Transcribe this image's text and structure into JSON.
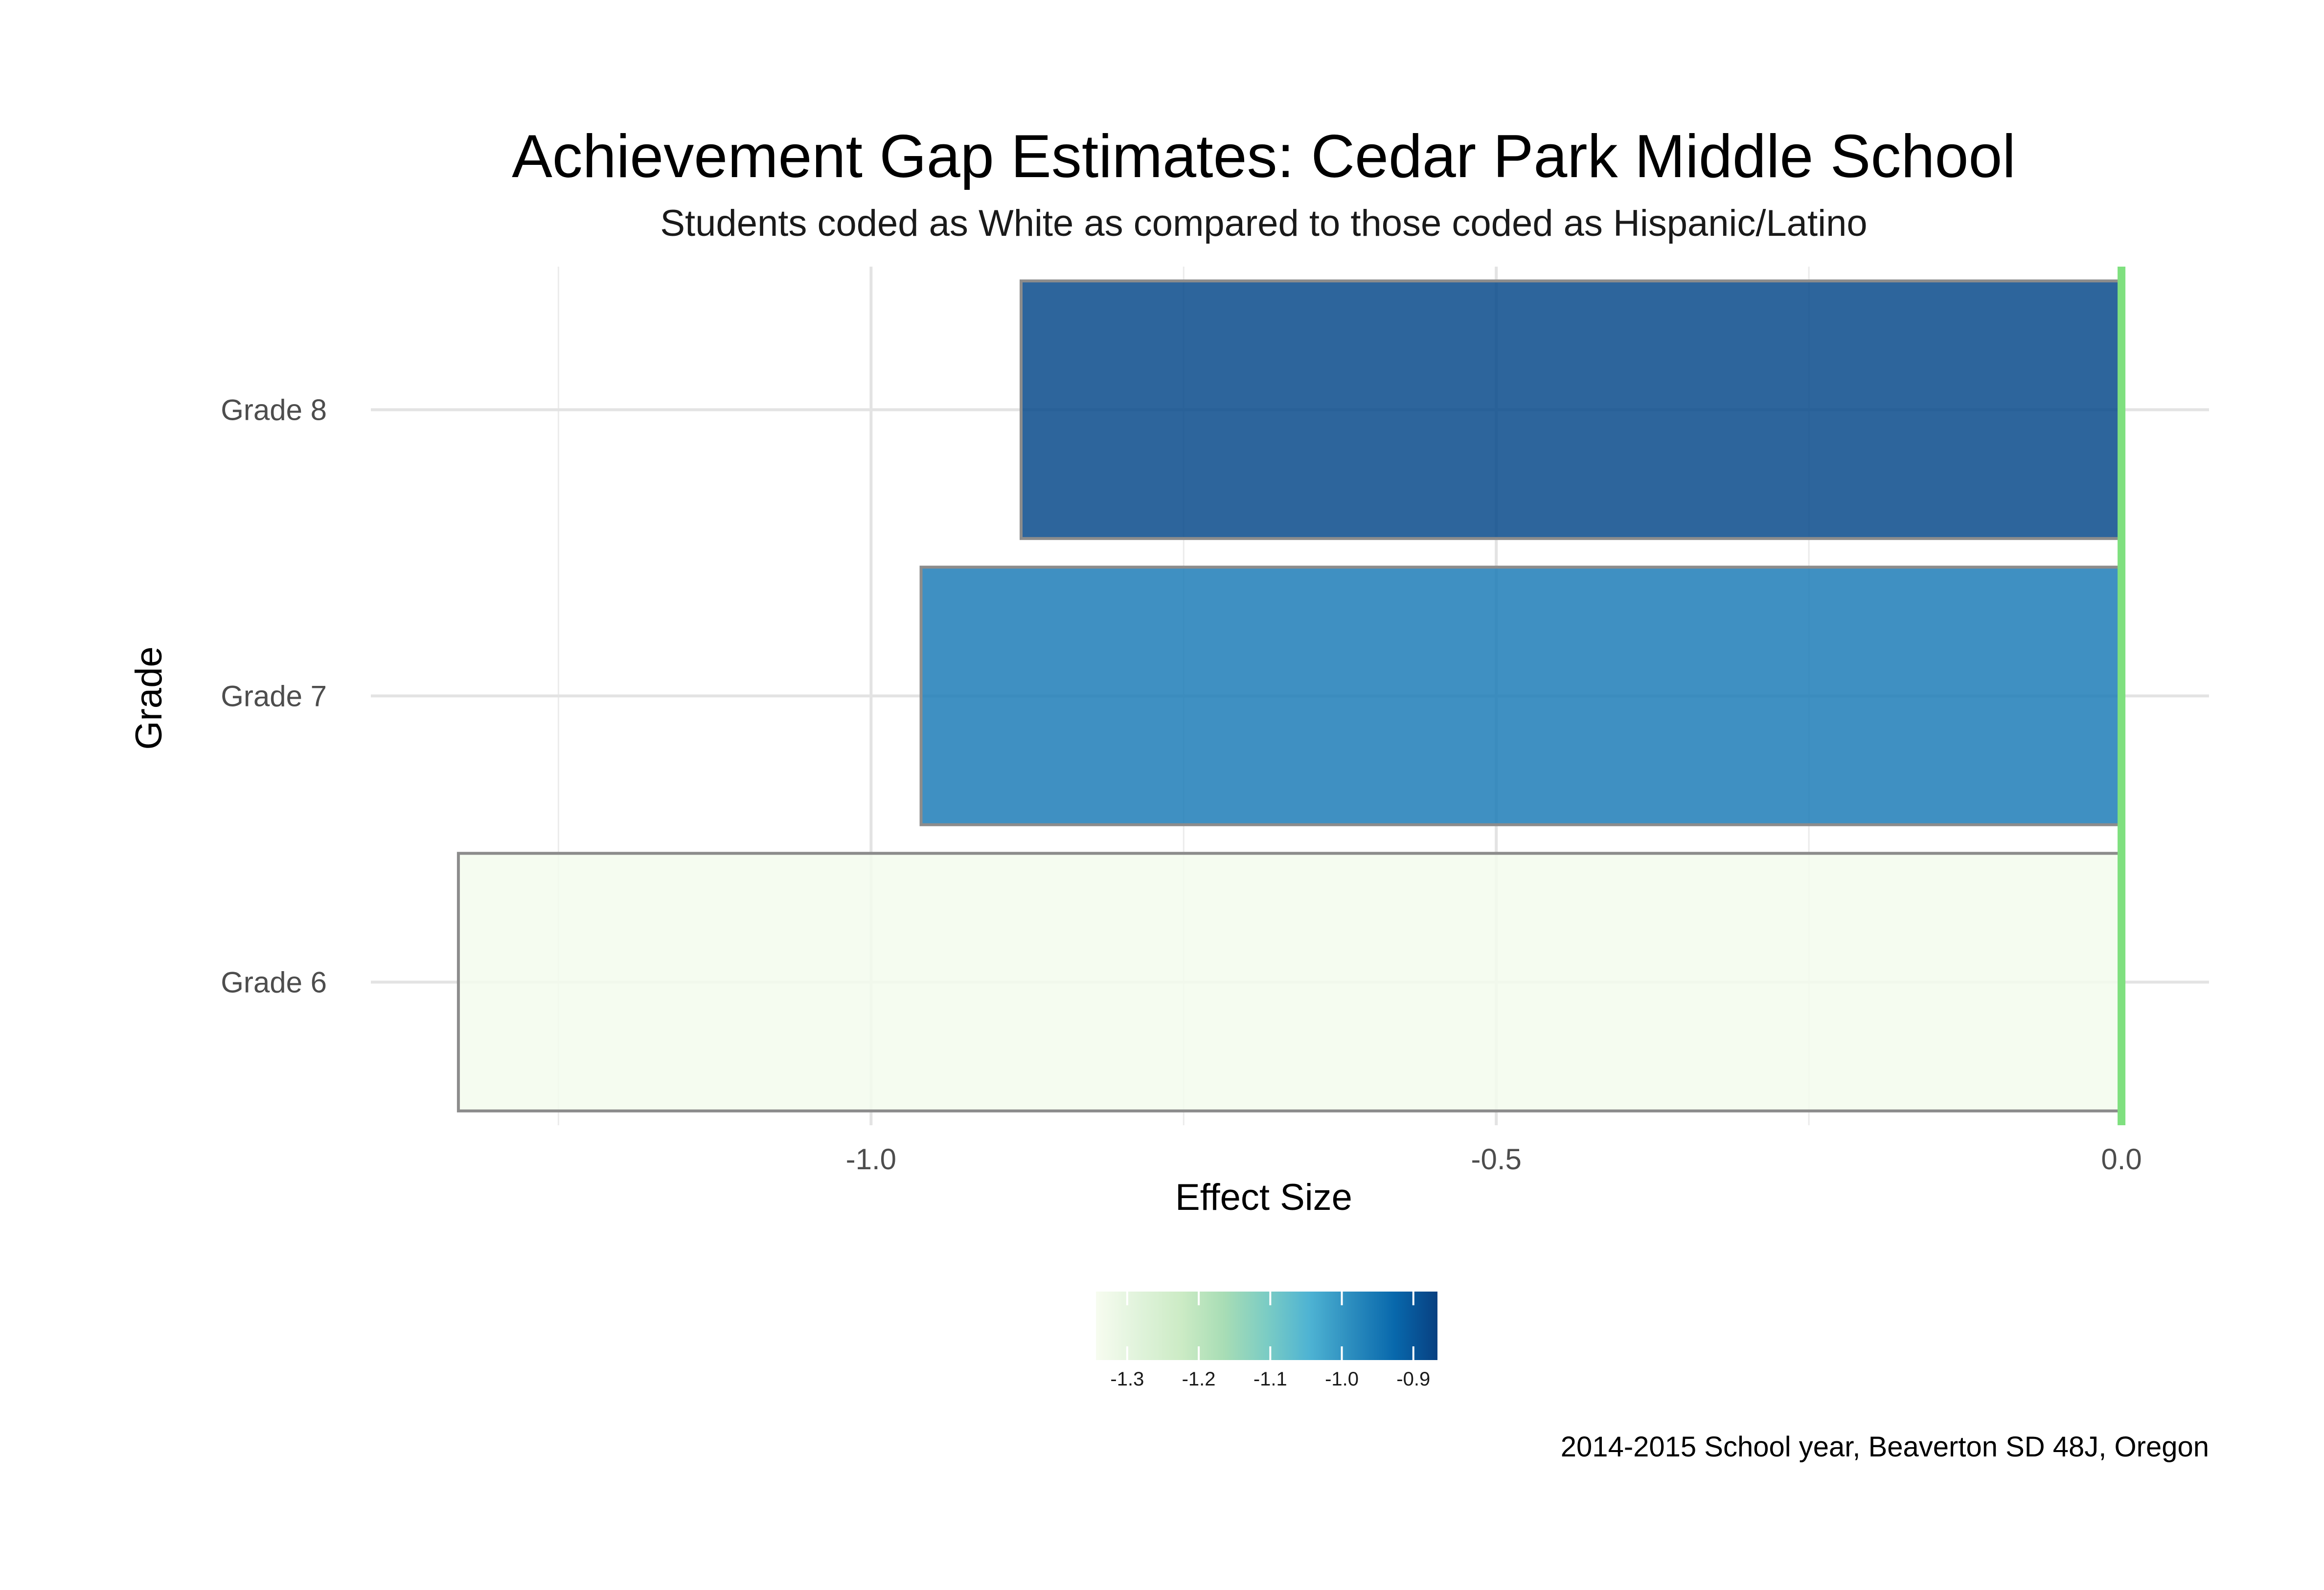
{
  "chart_data": {
    "type": "bar",
    "orientation": "horizontal",
    "title": "Achievement Gap Estimates: Cedar Park Middle School",
    "subtitle": "Students coded as White as compared to those coded as Hispanic/Latino",
    "xlabel": "Effect Size",
    "ylabel": "Grade",
    "categories": [
      "Grade 6",
      "Grade 7",
      "Grade 8"
    ],
    "values": [
      -1.33,
      -0.96,
      -0.88
    ],
    "xlim": [
      -1.4,
      0.07
    ],
    "x_ticks": [
      -1.0,
      -0.5,
      0.0
    ],
    "x_tick_labels": [
      "-1.0",
      "-0.5",
      "0.0"
    ],
    "x_minor_ticks": [
      -1.25,
      -0.75,
      -0.25
    ],
    "grid": true,
    "reference_line": {
      "x": 0,
      "color": "#7fe07f"
    },
    "bar_outline_color": "#8c8c8c",
    "color_scale": {
      "palette": "GnBu",
      "low": -1.33,
      "high": -0.88,
      "low_color": "#f0f9e8",
      "high_color": "#0c539f",
      "stops": [
        "#f7fcf0",
        "#e0f3db",
        "#ccebc5",
        "#a8ddb5",
        "#7bccc4",
        "#4eb3d3",
        "#2b8cbe",
        "#0868ac",
        "#084081"
      ],
      "ticks": [
        -1.3,
        -1.2,
        -1.1,
        -1.0,
        -0.9
      ],
      "tick_labels": [
        "-1.3",
        "-1.2",
        "-1.1",
        "-1.0",
        "-0.9"
      ]
    },
    "legend_position": "bottom",
    "caption": "2014-2015 School year, Beaverton SD 48J, Oregon"
  }
}
